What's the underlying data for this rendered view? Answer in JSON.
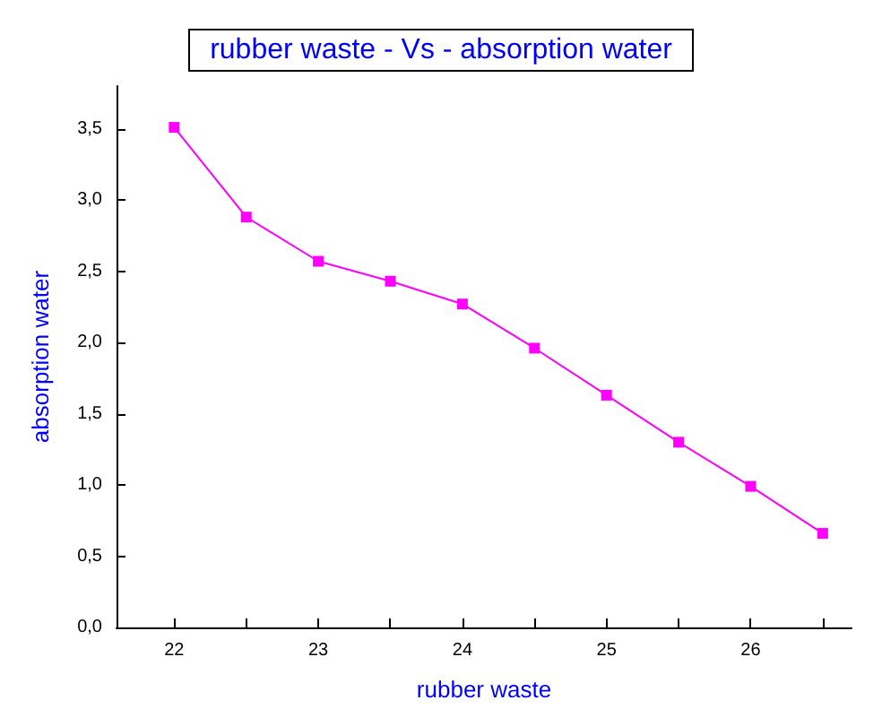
{
  "chart_data": {
    "type": "line",
    "title": "rubber waste - Vs - absorption water",
    "xlabel": "rubber waste",
    "ylabel": "absorption water",
    "x": [
      22,
      22.5,
      23,
      23.5,
      24,
      24.5,
      25,
      25.5,
      26,
      26.5
    ],
    "series": [
      {
        "color": "#ff00ff",
        "values": [
          3.51,
          2.88,
          2.57,
          2.43,
          2.27,
          1.96,
          1.63,
          1.3,
          0.99,
          0.66
        ]
      }
    ],
    "xlim": [
      21.6,
      26.7
    ],
    "xticks": [
      22,
      {
        "value": 22.5,
        "label": null
      },
      23,
      {
        "value": 23.5,
        "label": null
      },
      24,
      {
        "value": 24.5,
        "label": null
      },
      25,
      {
        "value": 25.5,
        "label": null
      },
      26,
      {
        "value": 26.5,
        "label": null
      }
    ],
    "ylim": [
      0,
      3.8
    ],
    "yticks": [
      {
        "value": 0,
        "label": "0,0"
      },
      {
        "value": 0.5,
        "label": "0,5"
      },
      {
        "value": 1,
        "label": "1,0"
      },
      {
        "value": 1.5,
        "label": "1,5"
      },
      {
        "value": 2,
        "label": "2,0"
      },
      {
        "value": 2.5,
        "label": "2,5"
      },
      {
        "value": 3,
        "label": "3,0"
      },
      {
        "value": 3.5,
        "label": "3,5"
      }
    ],
    "marker": "square",
    "line_style": "solid",
    "grid": false
  }
}
